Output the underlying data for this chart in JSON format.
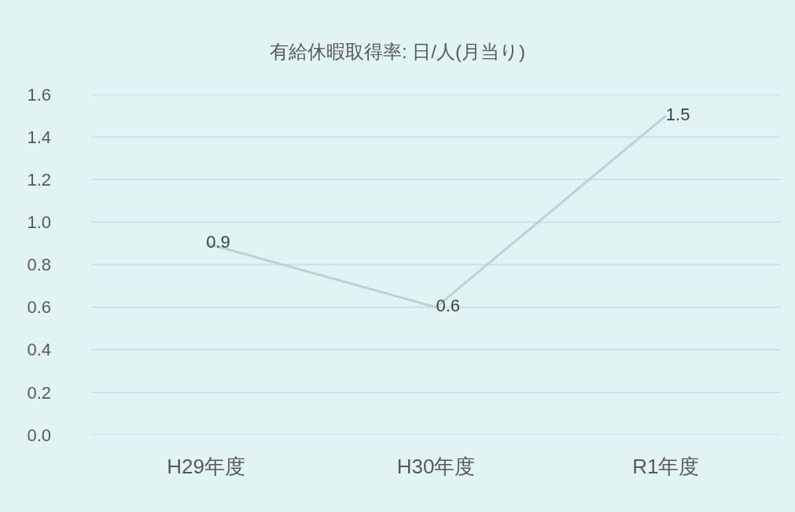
{
  "chart_data": {
    "type": "line",
    "title": "有給休暇取得率: 日/人(月当り)",
    "categories": [
      "H29年度",
      "H30年度",
      "R1年度"
    ],
    "series": [
      {
        "color": "#b9d3d4",
        "values": [
          0.9,
          0.6,
          1.5
        ]
      }
    ],
    "ylim": [
      0,
      1.6
    ],
    "yticks": [
      {
        "value": 0,
        "label": "0.0"
      },
      0.2,
      0.4,
      0.6,
      0.8,
      {
        "value": 1,
        "label": "1.0"
      },
      1.2,
      1.4,
      1.6
    ],
    "grid": "y",
    "marker": "none",
    "line_style": "solid",
    "data_labels": true
  }
}
